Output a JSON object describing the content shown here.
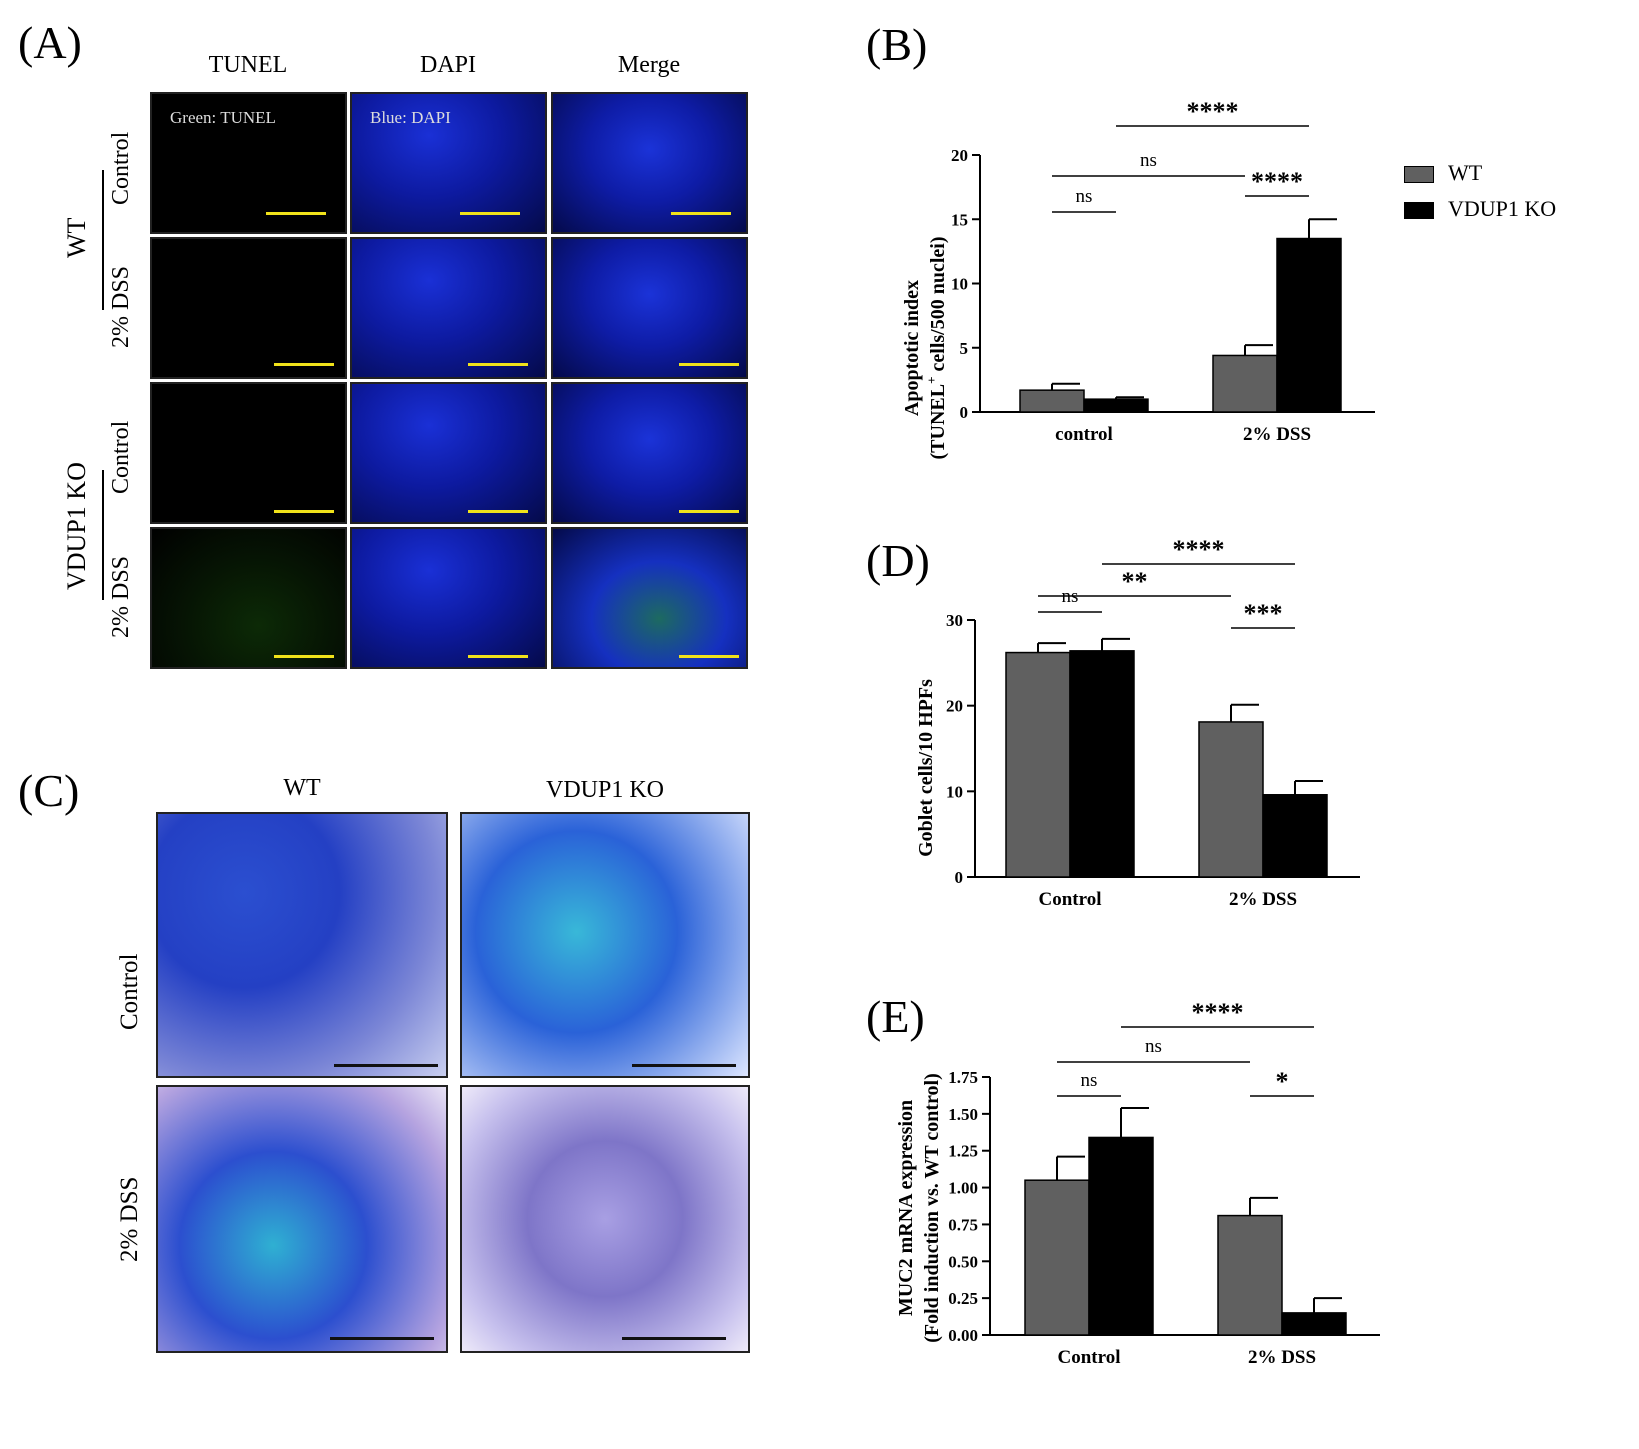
{
  "panelA": {
    "label": "(A)",
    "columns": [
      "TUNEL",
      "DAPI",
      "Merge"
    ],
    "rows": [
      "Control",
      "2% DSS",
      "Control",
      "2% DSS"
    ],
    "groups": [
      "WT",
      "VDUP1 KO"
    ],
    "overlay_tunel": "Green: TUNEL",
    "overlay_dapi": "Blue: DAPI"
  },
  "panelC": {
    "label": "(C)",
    "columns": [
      "WT",
      "VDUP1 KO"
    ],
    "rows": [
      "Control",
      "2% DSS"
    ]
  },
  "legend": {
    "items": [
      {
        "name": "WT",
        "color": "#606060"
      },
      {
        "name": "VDUP1 KO",
        "color": "#000000"
      }
    ]
  },
  "chart_data": [
    {
      "panel": "(B)",
      "type": "bar",
      "ylabel_line1": "Apoptotic index",
      "ylabel_line2": "(TUNEL",
      "ylabel_sup": "+",
      "ylabel_line2b": " cells/500 nuclei)",
      "categories": [
        "control",
        "2% DSS"
      ],
      "ylim": [
        0,
        20
      ],
      "yticks": [
        "0",
        "5",
        "10",
        "15",
        "20"
      ],
      "series": [
        {
          "name": "WT",
          "values": [
            1.7,
            4.4
          ],
          "errors": [
            0.5,
            0.8
          ]
        },
        {
          "name": "VDUP1 KO",
          "values": [
            1.0,
            13.5
          ],
          "errors": [
            0.15,
            1.5
          ]
        }
      ],
      "significance": [
        {
          "from": [
            0,
            0
          ],
          "to": [
            0,
            1
          ],
          "label": "ns"
        },
        {
          "from": [
            0,
            0
          ],
          "to": [
            1,
            0
          ],
          "label": "ns"
        },
        {
          "from": [
            0,
            1
          ],
          "to": [
            1,
            1
          ],
          "label": "****"
        },
        {
          "from": [
            1,
            0
          ],
          "to": [
            1,
            1
          ],
          "label": "****"
        }
      ]
    },
    {
      "panel": "(D)",
      "type": "bar",
      "ylabel": "Goblet cells/10 HPFs",
      "categories": [
        "Control",
        "2% DSS"
      ],
      "ylim": [
        0,
        30
      ],
      "yticks": [
        "0",
        "10",
        "20",
        "30"
      ],
      "series": [
        {
          "name": "WT",
          "values": [
            26.2,
            18.1
          ],
          "errors": [
            1.1,
            2.0
          ]
        },
        {
          "name": "VDUP1 KO",
          "values": [
            26.4,
            9.6
          ],
          "errors": [
            1.4,
            1.6
          ]
        }
      ],
      "significance": [
        {
          "from": [
            0,
            0
          ],
          "to": [
            0,
            1
          ],
          "label": "ns"
        },
        {
          "from": [
            0,
            0
          ],
          "to": [
            1,
            0
          ],
          "label": "**"
        },
        {
          "from": [
            0,
            1
          ],
          "to": [
            1,
            1
          ],
          "label": "****"
        },
        {
          "from": [
            1,
            0
          ],
          "to": [
            1,
            1
          ],
          "label": "***"
        }
      ]
    },
    {
      "panel": "(E)",
      "type": "bar",
      "ylabel_line1": "MUC2 mRNA expression",
      "ylabel_line2": "(Fold induction vs. WT control)",
      "categories": [
        "Control",
        "2% DSS"
      ],
      "ylim": [
        0,
        1.75
      ],
      "yticks": [
        "0.00",
        "0.25",
        "0.50",
        "0.75",
        "1.00",
        "1.25",
        "1.50",
        "1.75"
      ],
      "series": [
        {
          "name": "WT",
          "values": [
            1.05,
            0.81
          ],
          "errors": [
            0.16,
            0.12
          ]
        },
        {
          "name": "VDUP1 KO",
          "values": [
            1.34,
            0.15
          ],
          "errors": [
            0.2,
            0.1
          ]
        }
      ],
      "significance": [
        {
          "from": [
            0,
            0
          ],
          "to": [
            0,
            1
          ],
          "label": "ns"
        },
        {
          "from": [
            0,
            0
          ],
          "to": [
            1,
            0
          ],
          "label": "ns"
        },
        {
          "from": [
            0,
            1
          ],
          "to": [
            1,
            1
          ],
          "label": "****"
        },
        {
          "from": [
            1,
            0
          ],
          "to": [
            1,
            1
          ],
          "label": "*"
        }
      ]
    }
  ]
}
